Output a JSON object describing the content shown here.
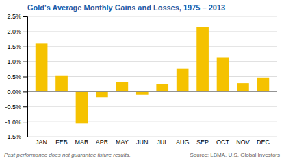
{
  "chart_data": {
    "type": "bar",
    "title": "Gold's Average Monthly Gains and Losses, 1975 – 2013",
    "categories": [
      "JAN",
      "FEB",
      "MAR",
      "APR",
      "MAY",
      "JUN",
      "JUL",
      "AUG",
      "SEP",
      "OCT",
      "NOV",
      "DEC"
    ],
    "values": [
      1.6,
      0.54,
      -1.05,
      -0.18,
      0.31,
      -0.1,
      0.24,
      0.77,
      2.15,
      1.14,
      0.28,
      0.47
    ],
    "color": "#F5C200",
    "ylim": [
      -1.5,
      2.5
    ],
    "yticks": [
      {
        "value": -1.5,
        "label": "-1.5%"
      },
      {
        "value": -1.0,
        "label": "-1.0%"
      },
      {
        "value": -0.5,
        "label": "-0.5%"
      },
      {
        "value": 0.0,
        "label": "0.0%"
      },
      {
        "value": 0.5,
        "label": "0.5%"
      },
      {
        "value": 1.0,
        "label": "1.0%"
      },
      {
        "value": 1.5,
        "label": "1.5%"
      },
      {
        "value": 2.0,
        "label": "2.0%"
      },
      {
        "value": 2.5,
        "label": "2.5%"
      }
    ],
    "grid": true,
    "annotations": [
      "Past performance does not guarantee future results.",
      "Source: LBMA, U.S. Global Investors"
    ]
  }
}
